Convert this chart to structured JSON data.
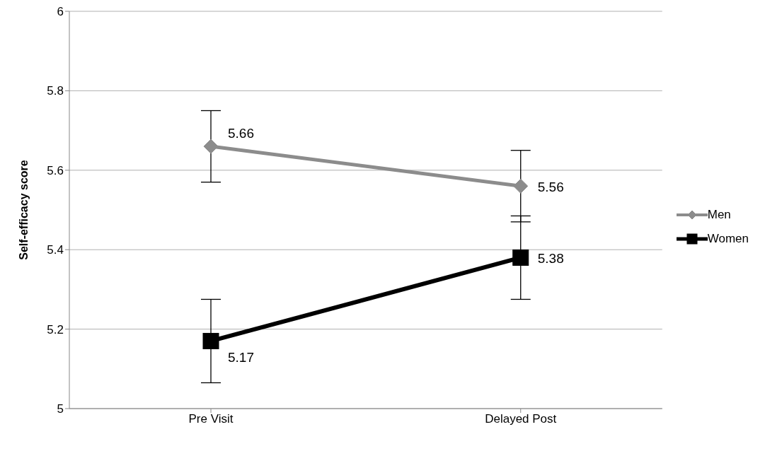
{
  "chart_data": {
    "type": "line",
    "ylabel": "Self-efficacy score",
    "categories": [
      "Pre Visit",
      "Delayed Post"
    ],
    "series": [
      {
        "name": "Men",
        "color": "#8c8c8c",
        "marker": "diamond",
        "values": [
          5.66,
          5.56
        ],
        "errors": [
          0.09,
          0.09
        ]
      },
      {
        "name": "Women",
        "color": "#000000",
        "marker": "square",
        "values": [
          5.17,
          5.38
        ],
        "errors": [
          0.105,
          0.105
        ]
      }
    ],
    "ylim": [
      5,
      6
    ],
    "yticks": [
      5,
      5.2,
      5.4,
      5.6,
      5.8,
      6
    ],
    "grid": "y",
    "legend": "right",
    "data_labels": true
  }
}
